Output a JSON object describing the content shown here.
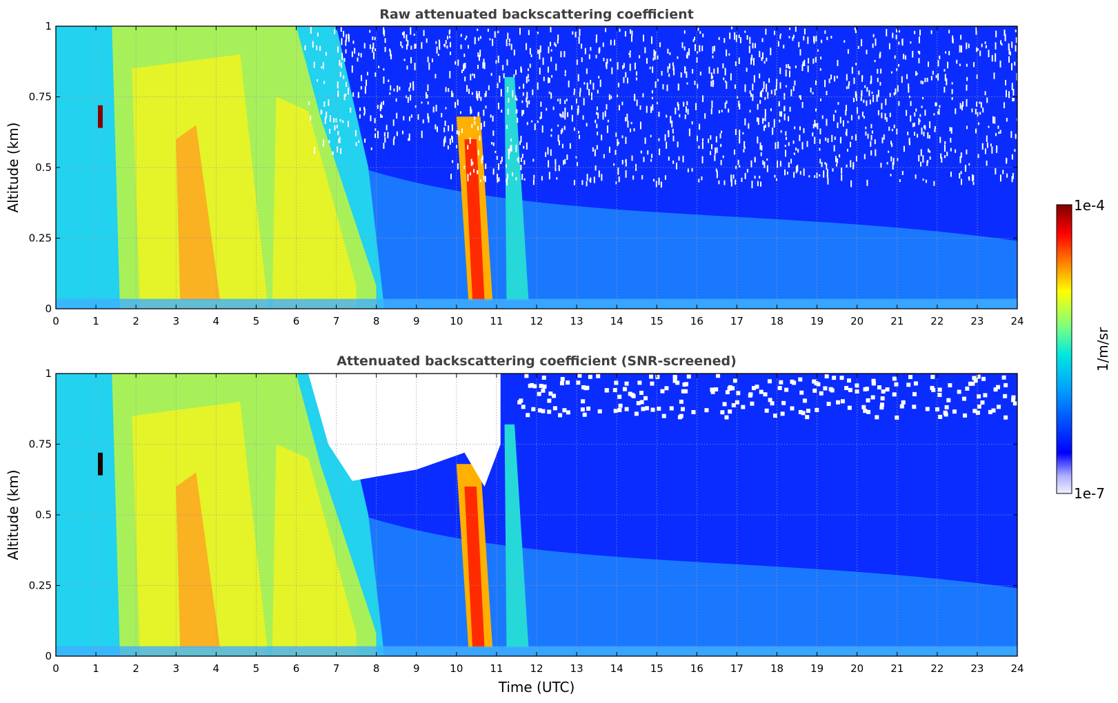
{
  "chart_data": [
    {
      "type": "heatmap",
      "title": "Raw attenuated backscattering coefficient",
      "xlabel": "",
      "ylabel": "Altitude (km)",
      "xlim": [
        0,
        24
      ],
      "ylim": [
        0,
        1
      ],
      "xticks": [
        "0",
        "1",
        "2",
        "3",
        "4",
        "5",
        "6",
        "7",
        "8",
        "9",
        "10",
        "11",
        "12",
        "13",
        "14",
        "15",
        "16",
        "17",
        "18",
        "19",
        "20",
        "21",
        "22",
        "23",
        "24"
      ],
      "yticks": [
        "0",
        "0.25",
        "0.5",
        "0.75",
        "1"
      ],
      "grid": true,
      "screening": "none"
    },
    {
      "type": "heatmap",
      "title": "Attenuated backscattering coefficient (SNR-screened)",
      "xlabel": "Time (UTC)",
      "ylabel": "Altitude (km)",
      "xlim": [
        0,
        24
      ],
      "ylim": [
        0,
        1
      ],
      "xticks": [
        "0",
        "1",
        "2",
        "3",
        "4",
        "5",
        "6",
        "7",
        "8",
        "9",
        "10",
        "11",
        "12",
        "13",
        "14",
        "15",
        "16",
        "17",
        "18",
        "19",
        "20",
        "21",
        "22",
        "23",
        "24"
      ],
      "yticks": [
        "0",
        "0.25",
        "0.5",
        "0.75",
        "1"
      ],
      "grid": true,
      "screening": "snr"
    }
  ],
  "colorbar": {
    "label": "1/m/sr",
    "max_label": "1e-4",
    "min_label": "1e-7",
    "scale": "log",
    "colormap": [
      "#f0f0ff",
      "#0000ff",
      "#00c0ff",
      "#7fff7f",
      "#ffff00",
      "#ff7f00",
      "#ff0000",
      "#7f0000"
    ]
  }
}
